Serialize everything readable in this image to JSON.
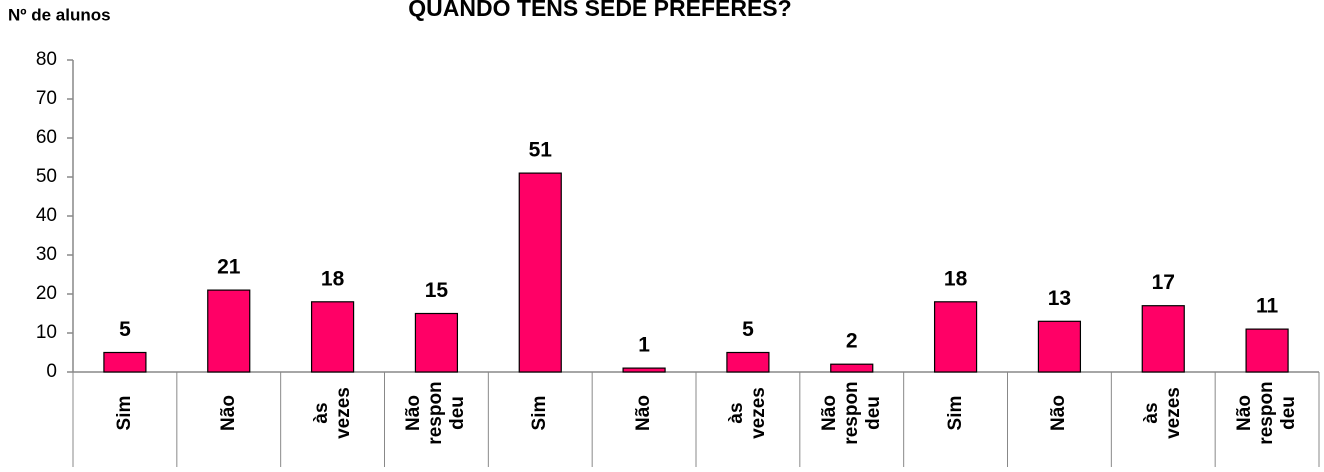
{
  "chart_data": {
    "type": "bar",
    "title": "QUANDO TENS SEDE PREFERES?",
    "y_label": "Nº de alunos",
    "categories": [
      "Sim",
      "Não",
      "às\nvezes",
      "Não\nrespon\ndeu",
      "Sim",
      "Não",
      "às\nvezes",
      "Não\nrespon\ndeu",
      "Sim",
      "Não",
      "às\nvezes",
      "Não\nrespon\ndeu"
    ],
    "values": [
      5,
      21,
      18,
      15,
      51,
      1,
      5,
      2,
      18,
      13,
      17,
      11
    ],
    "color": "#ff0066",
    "ylim": [
      0,
      80
    ],
    "yticks": [
      0,
      10,
      20,
      30,
      40,
      50,
      60,
      70,
      80
    ],
    "grid": false
  }
}
